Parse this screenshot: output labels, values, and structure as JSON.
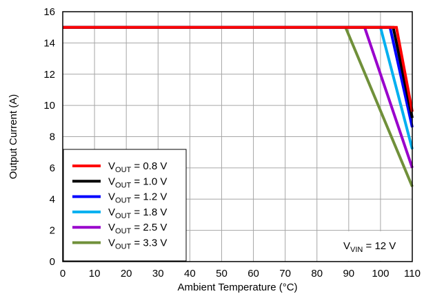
{
  "chart_data": {
    "type": "line",
    "xlabel": "Ambient Temperature (°C)",
    "ylabel": "Output Current (A)",
    "xlim": [
      0,
      110
    ],
    "ylim": [
      0,
      16
    ],
    "xticks": [
      "0",
      "10",
      "20",
      "30",
      "40",
      "50",
      "60",
      "70",
      "80",
      "90",
      "100",
      "110"
    ],
    "yticks": [
      "0",
      "2",
      "4",
      "6",
      "8",
      "10",
      "12",
      "14",
      "16"
    ],
    "grid": true,
    "legend_position": "bottom-left",
    "annotation": {
      "prefix": "V",
      "subscript": "VIN",
      "suffix": " = 12 V",
      "position": "bottom-right"
    },
    "series": [
      {
        "name": {
          "base": "V",
          "sub": "OUT",
          "rest": " = 0.8 V"
        },
        "color": "#ff0000",
        "x": [
          0,
          105,
          110
        ],
        "y": [
          15,
          15,
          9.6
        ]
      },
      {
        "name": {
          "base": "V",
          "sub": "OUT",
          "rest": " = 1.0 V"
        },
        "color": "#000000",
        "x": [
          0,
          104,
          110
        ],
        "y": [
          15,
          15,
          9.2
        ]
      },
      {
        "name": {
          "base": "V",
          "sub": "OUT",
          "rest": " = 1.2 V"
        },
        "color": "#0000ff",
        "x": [
          0,
          103,
          110
        ],
        "y": [
          15,
          15,
          8.6
        ]
      },
      {
        "name": {
          "base": "V",
          "sub": "OUT",
          "rest": " = 1.8 V"
        },
        "color": "#00b0f0",
        "x": [
          0,
          100,
          110
        ],
        "y": [
          15,
          15,
          7.2
        ]
      },
      {
        "name": {
          "base": "V",
          "sub": "OUT",
          "rest": " = 2.5 V"
        },
        "color": "#9900cc",
        "x": [
          0,
          95,
          110
        ],
        "y": [
          15,
          15,
          6.0
        ]
      },
      {
        "name": {
          "base": "V",
          "sub": "OUT",
          "rest": " = 3.3 V"
        },
        "color": "#70903a",
        "x": [
          0,
          89,
          110
        ],
        "y": [
          15,
          15,
          4.8
        ]
      }
    ]
  }
}
